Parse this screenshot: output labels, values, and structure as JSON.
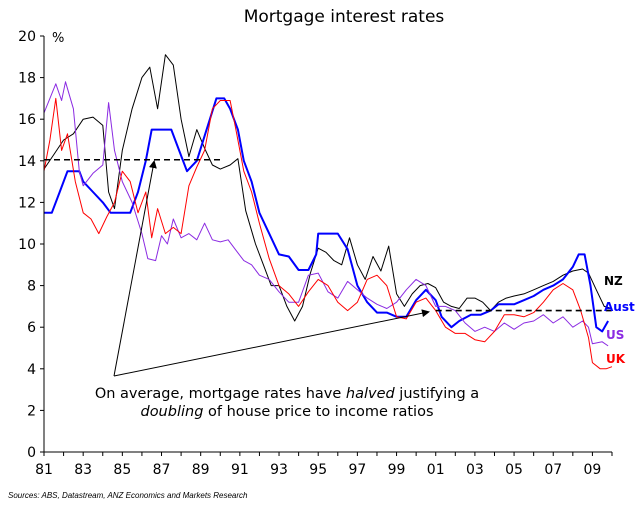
{
  "chart_data": {
    "type": "line",
    "title": "Mortgage interest rates",
    "ylabel": "%",
    "xlim": [
      1981,
      2010
    ],
    "ylim": [
      0,
      20
    ],
    "y_ticks": [
      0,
      2,
      4,
      6,
      8,
      10,
      12,
      14,
      16,
      18,
      20
    ],
    "x_ticks": [
      {
        "year": 1981,
        "label": "81"
      },
      {
        "year": 1983,
        "label": "83"
      },
      {
        "year": 1985,
        "label": "85"
      },
      {
        "year": 1987,
        "label": "87"
      },
      {
        "year": 1989,
        "label": "89"
      },
      {
        "year": 1991,
        "label": "91"
      },
      {
        "year": 1993,
        "label": "93"
      },
      {
        "year": 1995,
        "label": "95"
      },
      {
        "year": 1997,
        "label": "97"
      },
      {
        "year": 1999,
        "label": "99"
      },
      {
        "year": 2001,
        "label": "01"
      },
      {
        "year": 2003,
        "label": "03"
      },
      {
        "year": 2005,
        "label": "05"
      },
      {
        "year": 2007,
        "label": "07"
      },
      {
        "year": 2009,
        "label": "09"
      }
    ],
    "grid": false,
    "legend": "direct labels at right end of lines",
    "series": [
      {
        "name": "NZ",
        "color": "#000000",
        "points": [
          [
            1981.0,
            13.6
          ],
          [
            1981.5,
            14.3
          ],
          [
            1982.0,
            15.0
          ],
          [
            1982.5,
            15.3
          ],
          [
            1983.0,
            16.0
          ],
          [
            1983.5,
            16.1
          ],
          [
            1984.0,
            15.7
          ],
          [
            1984.3,
            12.5
          ],
          [
            1984.6,
            11.7
          ],
          [
            1985.0,
            14.5
          ],
          [
            1985.5,
            16.5
          ],
          [
            1986.0,
            18.0
          ],
          [
            1986.4,
            18.5
          ],
          [
            1986.8,
            16.5
          ],
          [
            1987.2,
            19.1
          ],
          [
            1987.6,
            18.6
          ],
          [
            1988.0,
            16.0
          ],
          [
            1988.4,
            14.2
          ],
          [
            1988.8,
            15.5
          ],
          [
            1989.2,
            14.6
          ],
          [
            1989.6,
            13.8
          ],
          [
            1990.0,
            13.6
          ],
          [
            1990.5,
            13.8
          ],
          [
            1990.9,
            14.1
          ],
          [
            1991.3,
            11.6
          ],
          [
            1991.8,
            10.0
          ],
          [
            1992.2,
            9.0
          ],
          [
            1992.6,
            8.0
          ],
          [
            1993.0,
            8.0
          ],
          [
            1993.4,
            7.0
          ],
          [
            1993.8,
            6.3
          ],
          [
            1994.2,
            7.0
          ],
          [
            1994.6,
            8.6
          ],
          [
            1995.0,
            9.8
          ],
          [
            1995.4,
            9.6
          ],
          [
            1995.8,
            9.2
          ],
          [
            1996.2,
            9.0
          ],
          [
            1996.6,
            10.3
          ],
          [
            1997.0,
            9.0
          ],
          [
            1997.4,
            8.3
          ],
          [
            1997.8,
            9.4
          ],
          [
            1998.2,
            8.7
          ],
          [
            1998.6,
            9.9
          ],
          [
            1999.0,
            7.6
          ],
          [
            1999.4,
            7.0
          ],
          [
            1999.8,
            7.6
          ],
          [
            2000.2,
            8.0
          ],
          [
            2000.6,
            8.1
          ],
          [
            2001.0,
            7.9
          ],
          [
            2001.4,
            7.2
          ],
          [
            2001.8,
            7.0
          ],
          [
            2002.2,
            6.9
          ],
          [
            2002.6,
            7.4
          ],
          [
            2003.0,
            7.4
          ],
          [
            2003.4,
            7.2
          ],
          [
            2003.8,
            6.8
          ],
          [
            2004.2,
            7.2
          ],
          [
            2004.6,
            7.4
          ],
          [
            2005.0,
            7.5
          ],
          [
            2005.5,
            7.6
          ],
          [
            2006.0,
            7.8
          ],
          [
            2006.5,
            8.0
          ],
          [
            2007.0,
            8.2
          ],
          [
            2007.5,
            8.5
          ],
          [
            2008.0,
            8.7
          ],
          [
            2008.5,
            8.8
          ],
          [
            2008.8,
            8.6
          ],
          [
            2009.2,
            7.8
          ],
          [
            2009.6,
            7.0
          ],
          [
            2010.0,
            6.9
          ]
        ]
      },
      {
        "name": "Aust",
        "color": "#0000ff",
        "points": [
          [
            1981.0,
            11.5
          ],
          [
            1981.4,
            11.5
          ],
          [
            1981.8,
            12.5
          ],
          [
            1982.2,
            13.5
          ],
          [
            1982.8,
            13.5
          ],
          [
            1983.0,
            13.0
          ],
          [
            1983.5,
            12.5
          ],
          [
            1984.0,
            12.0
          ],
          [
            1984.4,
            11.5
          ],
          [
            1985.0,
            11.5
          ],
          [
            1985.4,
            11.5
          ],
          [
            1985.8,
            12.5
          ],
          [
            1986.2,
            14.0
          ],
          [
            1986.5,
            15.5
          ],
          [
            1987.0,
            15.5
          ],
          [
            1987.5,
            15.5
          ],
          [
            1987.9,
            14.5
          ],
          [
            1988.3,
            13.5
          ],
          [
            1988.8,
            14.0
          ],
          [
            1989.3,
            15.5
          ],
          [
            1989.8,
            17.0
          ],
          [
            1990.2,
            17.0
          ],
          [
            1990.5,
            16.5
          ],
          [
            1990.9,
            15.5
          ],
          [
            1991.2,
            14.0
          ],
          [
            1991.6,
            13.0
          ],
          [
            1992.0,
            11.5
          ],
          [
            1992.5,
            10.5
          ],
          [
            1993.0,
            9.5
          ],
          [
            1993.5,
            9.4
          ],
          [
            1994.0,
            8.75
          ],
          [
            1994.5,
            8.75
          ],
          [
            1994.9,
            9.5
          ],
          [
            1995.0,
            10.5
          ],
          [
            1995.5,
            10.5
          ],
          [
            1996.0,
            10.5
          ],
          [
            1996.5,
            9.75
          ],
          [
            1997.0,
            8.0
          ],
          [
            1997.5,
            7.2
          ],
          [
            1998.0,
            6.7
          ],
          [
            1998.5,
            6.7
          ],
          [
            1999.0,
            6.5
          ],
          [
            1999.5,
            6.5
          ],
          [
            2000.0,
            7.3
          ],
          [
            2000.5,
            7.8
          ],
          [
            2001.0,
            7.3
          ],
          [
            2001.3,
            6.5
          ],
          [
            2001.8,
            6.0
          ],
          [
            2002.2,
            6.3
          ],
          [
            2002.8,
            6.6
          ],
          [
            2003.3,
            6.6
          ],
          [
            2003.8,
            6.8
          ],
          [
            2004.2,
            7.1
          ],
          [
            2005.0,
            7.1
          ],
          [
            2005.5,
            7.3
          ],
          [
            2006.0,
            7.5
          ],
          [
            2006.5,
            7.8
          ],
          [
            2007.0,
            8.0
          ],
          [
            2007.5,
            8.3
          ],
          [
            2008.0,
            8.9
          ],
          [
            2008.3,
            9.5
          ],
          [
            2008.6,
            9.5
          ],
          [
            2008.9,
            8.0
          ],
          [
            2009.2,
            6.0
          ],
          [
            2009.5,
            5.8
          ],
          [
            2009.8,
            6.3
          ]
        ]
      },
      {
        "name": "US",
        "color": "#8b2be2",
        "points": [
          [
            1981.0,
            16.3
          ],
          [
            1981.3,
            17.0
          ],
          [
            1981.6,
            17.7
          ],
          [
            1981.9,
            16.9
          ],
          [
            1982.1,
            17.8
          ],
          [
            1982.5,
            16.5
          ],
          [
            1982.8,
            13.5
          ],
          [
            1983.0,
            12.8
          ],
          [
            1983.5,
            13.4
          ],
          [
            1984.0,
            13.8
          ],
          [
            1984.3,
            16.8
          ],
          [
            1984.6,
            14.5
          ],
          [
            1985.0,
            13.0
          ],
          [
            1985.5,
            12.0
          ],
          [
            1986.0,
            10.5
          ],
          [
            1986.3,
            9.3
          ],
          [
            1986.7,
            9.2
          ],
          [
            1987.0,
            10.4
          ],
          [
            1987.3,
            10.0
          ],
          [
            1987.6,
            11.2
          ],
          [
            1988.0,
            10.3
          ],
          [
            1988.4,
            10.5
          ],
          [
            1988.8,
            10.2
          ],
          [
            1989.2,
            11.0
          ],
          [
            1989.6,
            10.2
          ],
          [
            1990.0,
            10.1
          ],
          [
            1990.4,
            10.2
          ],
          [
            1990.8,
            9.7
          ],
          [
            1991.2,
            9.2
          ],
          [
            1991.6,
            9.0
          ],
          [
            1992.0,
            8.5
          ],
          [
            1992.5,
            8.3
          ],
          [
            1993.0,
            7.7
          ],
          [
            1993.5,
            7.2
          ],
          [
            1994.0,
            7.2
          ],
          [
            1994.5,
            8.5
          ],
          [
            1995.0,
            8.6
          ],
          [
            1995.5,
            7.7
          ],
          [
            1996.0,
            7.4
          ],
          [
            1996.5,
            8.2
          ],
          [
            1997.0,
            7.8
          ],
          [
            1997.5,
            7.4
          ],
          [
            1998.0,
            7.1
          ],
          [
            1998.5,
            6.9
          ],
          [
            1999.0,
            7.2
          ],
          [
            1999.5,
            7.8
          ],
          [
            2000.0,
            8.3
          ],
          [
            2000.5,
            8.0
          ],
          [
            2001.0,
            7.0
          ],
          [
            2001.5,
            7.0
          ],
          [
            2002.0,
            6.8
          ],
          [
            2002.5,
            6.2
          ],
          [
            2003.0,
            5.8
          ],
          [
            2003.5,
            6.0
          ],
          [
            2004.0,
            5.8
          ],
          [
            2004.5,
            6.2
          ],
          [
            2005.0,
            5.9
          ],
          [
            2005.5,
            6.2
          ],
          [
            2006.0,
            6.3
          ],
          [
            2006.5,
            6.6
          ],
          [
            2007.0,
            6.2
          ],
          [
            2007.5,
            6.5
          ],
          [
            2008.0,
            6.0
          ],
          [
            2008.5,
            6.3
          ],
          [
            2008.8,
            6.0
          ],
          [
            2009.0,
            5.2
          ],
          [
            2009.5,
            5.3
          ],
          [
            2009.8,
            5.1
          ]
        ]
      },
      {
        "name": "UK",
        "color": "#ff0000",
        "points": [
          [
            1981.0,
            13.5
          ],
          [
            1981.3,
            15.0
          ],
          [
            1981.6,
            17.0
          ],
          [
            1981.9,
            14.5
          ],
          [
            1982.2,
            15.3
          ],
          [
            1982.6,
            13.0
          ],
          [
            1983.0,
            11.5
          ],
          [
            1983.4,
            11.2
          ],
          [
            1983.8,
            10.5
          ],
          [
            1984.2,
            11.3
          ],
          [
            1984.6,
            12.0
          ],
          [
            1985.0,
            13.5
          ],
          [
            1985.4,
            13.0
          ],
          [
            1985.8,
            11.5
          ],
          [
            1986.2,
            12.5
          ],
          [
            1986.5,
            10.3
          ],
          [
            1986.8,
            11.7
          ],
          [
            1987.2,
            10.5
          ],
          [
            1987.6,
            10.8
          ],
          [
            1988.0,
            10.5
          ],
          [
            1988.4,
            12.8
          ],
          [
            1988.8,
            13.7
          ],
          [
            1989.2,
            14.5
          ],
          [
            1989.6,
            16.5
          ],
          [
            1990.0,
            16.9
          ],
          [
            1990.5,
            16.9
          ],
          [
            1990.8,
            15.5
          ],
          [
            1991.2,
            13.5
          ],
          [
            1991.6,
            12.5
          ],
          [
            1992.0,
            11.0
          ],
          [
            1992.5,
            9.3
          ],
          [
            1993.0,
            8.0
          ],
          [
            1993.5,
            7.6
          ],
          [
            1994.0,
            7.0
          ],
          [
            1994.5,
            7.7
          ],
          [
            1995.0,
            8.3
          ],
          [
            1995.5,
            8.0
          ],
          [
            1996.0,
            7.2
          ],
          [
            1996.5,
            6.8
          ],
          [
            1997.0,
            7.2
          ],
          [
            1997.5,
            8.3
          ],
          [
            1998.0,
            8.5
          ],
          [
            1998.5,
            8.0
          ],
          [
            1999.0,
            6.5
          ],
          [
            1999.5,
            6.4
          ],
          [
            2000.0,
            7.2
          ],
          [
            2000.5,
            7.4
          ],
          [
            2001.0,
            6.8
          ],
          [
            2001.5,
            6.0
          ],
          [
            2002.0,
            5.7
          ],
          [
            2002.5,
            5.7
          ],
          [
            2003.0,
            5.4
          ],
          [
            2003.5,
            5.3
          ],
          [
            2004.0,
            5.8
          ],
          [
            2004.5,
            6.6
          ],
          [
            2005.0,
            6.6
          ],
          [
            2005.5,
            6.5
          ],
          [
            2006.0,
            6.7
          ],
          [
            2006.5,
            7.2
          ],
          [
            2007.0,
            7.8
          ],
          [
            2007.5,
            8.1
          ],
          [
            2008.0,
            7.8
          ],
          [
            2008.4,
            6.8
          ],
          [
            2008.8,
            5.5
          ],
          [
            2009.0,
            4.3
          ],
          [
            2009.4,
            4.0
          ],
          [
            2009.7,
            4.0
          ],
          [
            2010.0,
            4.1
          ]
        ]
      }
    ],
    "averages": [
      {
        "name": "1981-1990 average",
        "y": 14.05,
        "x_start": 1981,
        "x_end": 1990.1,
        "color": "#000000"
      },
      {
        "name": "2001-2009 average",
        "y": 6.8,
        "x_start": 2001.0,
        "x_end": 2010.0,
        "color": "#000000"
      }
    ],
    "annotation": {
      "line1_pre": "On average, mortgage rates have ",
      "line1_em": "halved",
      "line1_post": " justifying a",
      "line2_em": "doubling",
      "line2_post": " of house price to income ratios"
    },
    "source": "Sources:  ABS, Datastream, ANZ Economics and Markets Research"
  }
}
